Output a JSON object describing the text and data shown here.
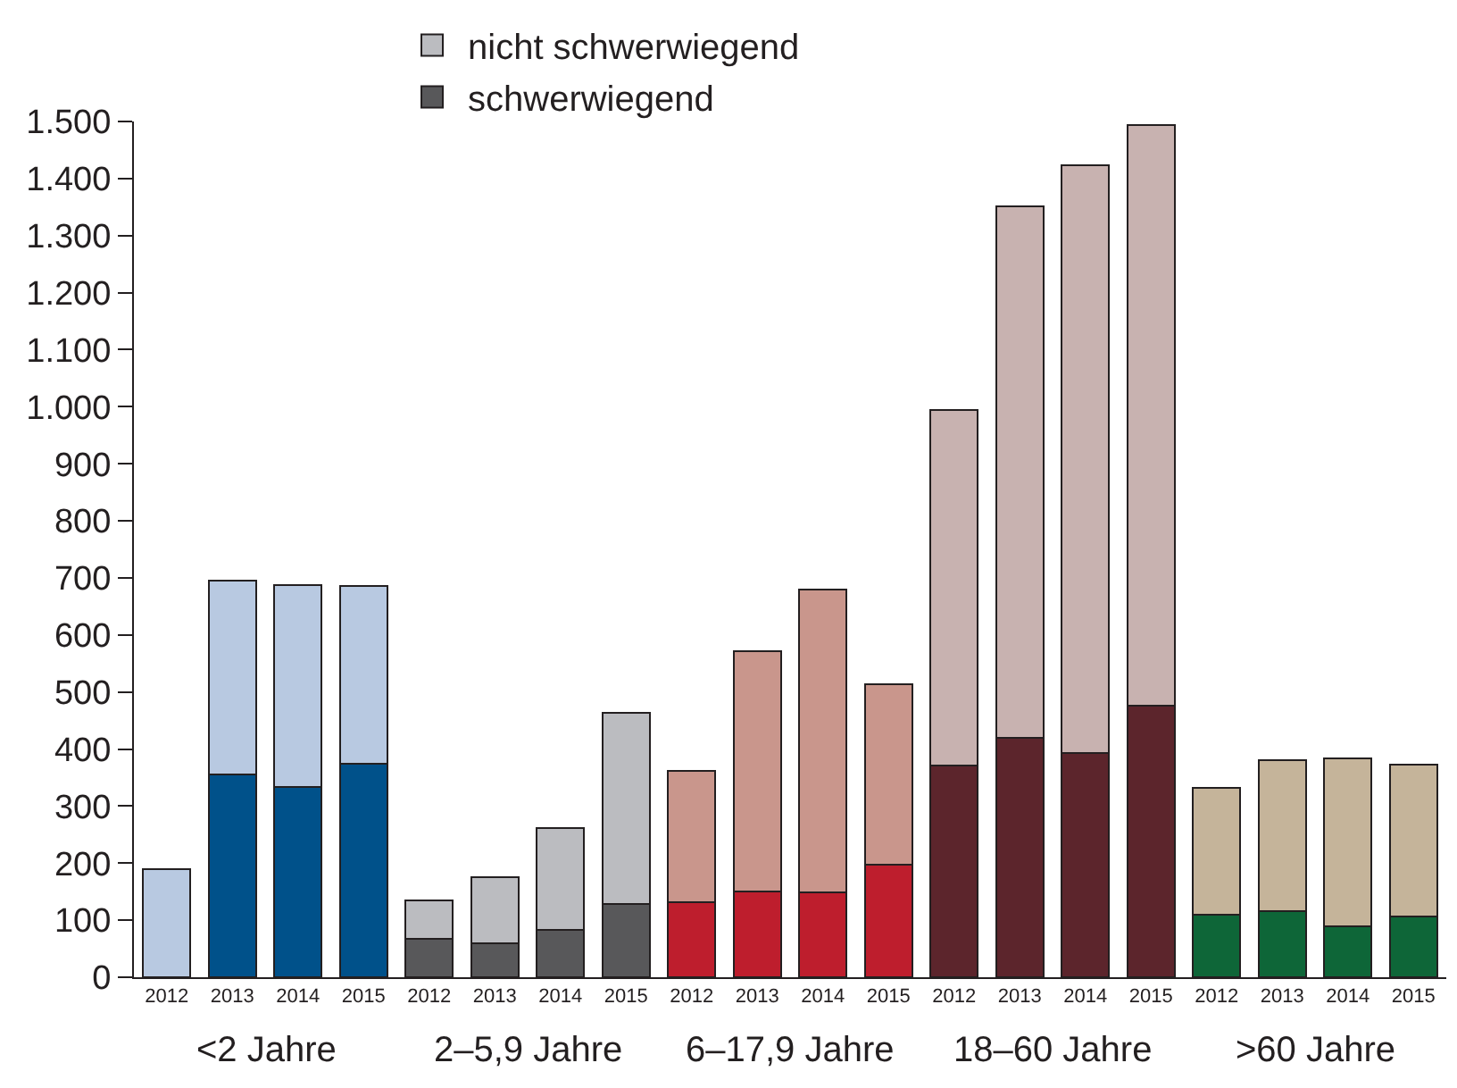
{
  "chart_data": {
    "type": "bar",
    "stacked": true,
    "categories": [
      "2012",
      "2013",
      "2014",
      "2015",
      "2012",
      "2013",
      "2014",
      "2015",
      "2012",
      "2013",
      "2014",
      "2015",
      "2012",
      "2013",
      "2014",
      "2015",
      "2012",
      "2013",
      "2014",
      "2015"
    ],
    "annotations": [
      "<2 Jahre",
      "2–5,9 Jahre",
      "6–17,9 Jahre",
      "18–60 Jahre",
      ">60 Jahre"
    ],
    "series": [
      {
        "name": "schwerwiegend",
        "color": "#58585a",
        "colors": [
          "#00518a",
          "#00518a",
          "#00518a",
          "#00518a",
          "#58585a",
          "#58585a",
          "#58585a",
          "#58585a",
          "#be1e2d",
          "#be1e2d",
          "#be1e2d",
          "#be1e2d",
          "#5c252c",
          "#5c252c",
          "#5c252c",
          "#5c252c",
          "#0e6638",
          "#0e6638",
          "#0e6638",
          "#0e6638"
        ],
        "values": [
          null,
          355,
          333,
          374,
          68,
          59,
          83,
          128,
          131,
          150,
          148,
          197,
          371,
          419,
          393,
          476,
          110,
          116,
          89,
          107
        ]
      },
      {
        "name": "nicht schwerwiegend",
        "color": "#bbbcc0",
        "colors": [
          "#b8c9e1",
          "#b8c9e1",
          "#b8c9e1",
          "#b8c9e1",
          "#bbbcc0",
          "#bbbcc0",
          "#bbbcc0",
          "#bbbcc0",
          "#c9968c",
          "#c9968c",
          "#c9968c",
          "#c9968c",
          "#c8b2b0",
          "#c8b2b0",
          "#c8b2b0",
          "#c8b2b0",
          "#c5b49a",
          "#c5b49a",
          "#c5b49a",
          "#c5b49a"
        ],
        "values": [
          190,
          340,
          355,
          312,
          66,
          116,
          179,
          335,
          230,
          421,
          531,
          317,
          624,
          932,
          1030,
          1017,
          222,
          264,
          294,
          265
        ]
      }
    ],
    "ylim": [
      0,
      1500
    ],
    "yticks": [
      0,
      100,
      200,
      300,
      400,
      500,
      600,
      700,
      800,
      900,
      {
        "value": 1000,
        "label": "1.000"
      },
      {
        "value": 1100,
        "label": "1.100"
      },
      {
        "value": 1200,
        "label": "1.200"
      },
      {
        "value": 1300,
        "label": "1.300"
      },
      {
        "value": 1400,
        "label": "1.400"
      },
      {
        "value": 1500,
        "label": "1.500"
      }
    ],
    "grid": false,
    "legend": "top left"
  }
}
